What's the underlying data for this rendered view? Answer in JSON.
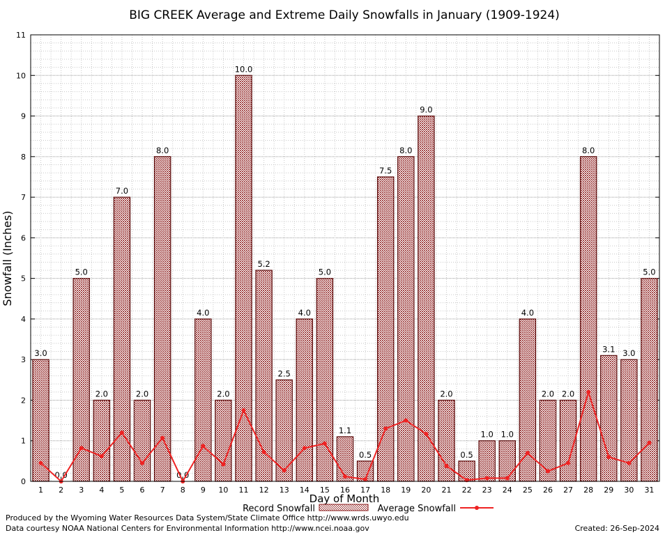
{
  "chart_data": {
    "type": "bar",
    "title": "BIG CREEK Average and Extreme Daily Snowfalls in January (1909-1924)",
    "xlabel": "Day of Month",
    "ylabel": "Snowfall (Inches)",
    "ylim": [
      0,
      11
    ],
    "yticks": [
      "0",
      "1",
      "2",
      "3",
      "4",
      "5",
      "6",
      "7",
      "8",
      "9",
      "10",
      "11"
    ],
    "grid": true,
    "legend_position": "bottom",
    "categories": [
      "1",
      "2",
      "3",
      "4",
      "5",
      "6",
      "7",
      "8",
      "9",
      "10",
      "11",
      "12",
      "13",
      "14",
      "15",
      "16",
      "17",
      "18",
      "19",
      "20",
      "21",
      "22",
      "23",
      "24",
      "25",
      "26",
      "27",
      "28",
      "29",
      "30",
      "31"
    ],
    "series": [
      {
        "name": "Record Snowfall",
        "kind": "bar",
        "color": "#8b1a1a",
        "values": [
          3.0,
          0.0,
          5.0,
          2.0,
          7.0,
          2.0,
          8.0,
          0.0,
          4.0,
          2.0,
          10.0,
          5.2,
          2.5,
          4.0,
          5.0,
          1.1,
          0.5,
          7.5,
          8.0,
          9.0,
          2.0,
          0.5,
          1.0,
          1.0,
          4.0,
          2.0,
          2.0,
          8.0,
          3.1,
          3.0,
          5.0
        ],
        "labels": [
          "3.0",
          "0.0",
          "5.0",
          "2.0",
          "7.0",
          "2.0",
          "8.0",
          "0.0",
          "4.0",
          "2.0",
          "10.0",
          "5.2",
          "2.5",
          "4.0",
          "5.0",
          "1.1",
          "0.5",
          "7.5",
          "8.0",
          "9.0",
          "2.0",
          "0.5",
          "1.0",
          "1.0",
          "4.0",
          "2.0",
          "2.0",
          "8.0",
          "3.1",
          "3.0",
          "5.0"
        ]
      },
      {
        "name": "Average Snowfall",
        "kind": "line",
        "color": "#ee2222",
        "values": [
          0.45,
          0.0,
          0.82,
          0.62,
          1.2,
          0.45,
          1.07,
          0.0,
          0.87,
          0.42,
          1.75,
          0.72,
          0.27,
          0.82,
          0.93,
          0.12,
          0.05,
          1.3,
          1.5,
          1.17,
          0.38,
          0.03,
          0.08,
          0.08,
          0.7,
          0.25,
          0.45,
          2.2,
          0.6,
          0.45,
          0.95
        ]
      }
    ]
  },
  "footer": {
    "produced_by": "Produced by the Wyoming Water Resources Data System/State Climate Office http://www.wrds.uwyo.edu",
    "courtesy": "Data courtesy NOAA National Centers for Environmental Information http://www.ncei.noaa.gov",
    "created": "Created:  26-Sep-2024"
  }
}
